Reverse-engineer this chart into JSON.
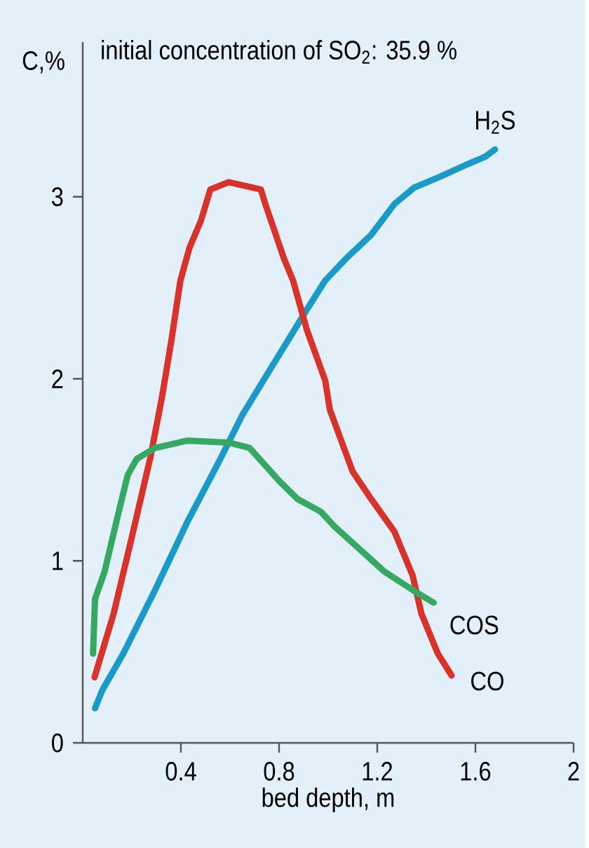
{
  "chart_data": {
    "type": "line",
    "title": "initial concentration of SO$_{2}$: 35.9 %",
    "xlabel": "bed depth, m",
    "ylabel": "C,%",
    "xlim": [
      0,
      2
    ],
    "xticks": [
      0.4,
      0.8,
      1.2,
      1.6,
      2
    ],
    "ylim": [
      0,
      3.85
    ],
    "yticks": [
      0,
      1,
      2,
      3
    ],
    "marker": "none",
    "line_style": "solid",
    "series": [
      {
        "name": "H$_{2}$S",
        "color": "#1a9ac9",
        "x": [
          0.05,
          0.08,
          0.165,
          0.295,
          0.425,
          0.557,
          0.65,
          0.754,
          0.913,
          0.988,
          1.08,
          1.175,
          1.27,
          1.35,
          1.456,
          1.57,
          1.64,
          1.68
        ],
        "values": [
          0.19,
          0.29,
          0.49,
          0.84,
          1.21,
          1.55,
          1.8,
          2.03,
          2.38,
          2.54,
          2.67,
          2.79,
          2.96,
          3.05,
          3.11,
          3.18,
          3.22,
          3.26
        ]
      },
      {
        "name": "CO",
        "color": "#d9322a",
        "x": [
          0.048,
          0.126,
          0.2,
          0.276,
          0.323,
          0.36,
          0.398,
          0.435,
          0.482,
          0.52,
          0.594,
          0.726,
          0.744,
          0.82,
          0.857,
          0.913,
          0.988,
          1.007,
          1.1,
          1.175,
          1.27,
          1.344,
          1.38,
          1.447,
          1.503
        ],
        "values": [
          0.36,
          0.71,
          1.13,
          1.57,
          1.9,
          2.2,
          2.54,
          2.72,
          2.87,
          3.04,
          3.08,
          3.04,
          2.96,
          2.66,
          2.54,
          2.27,
          1.99,
          1.83,
          1.49,
          1.34,
          1.16,
          0.92,
          0.71,
          0.49,
          0.37
        ]
      },
      {
        "name": "COS",
        "color": "#35a862",
        "x": [
          0.042,
          0.05,
          0.089,
          0.145,
          0.183,
          0.22,
          0.295,
          0.425,
          0.594,
          0.68,
          0.8,
          0.875,
          0.97,
          1.025,
          1.156,
          1.23,
          1.344,
          1.43
        ],
        "values": [
          0.49,
          0.79,
          0.94,
          1.26,
          1.47,
          1.56,
          1.62,
          1.66,
          1.65,
          1.62,
          1.44,
          1.34,
          1.27,
          1.19,
          1.03,
          0.94,
          0.84,
          0.77
        ]
      }
    ]
  }
}
